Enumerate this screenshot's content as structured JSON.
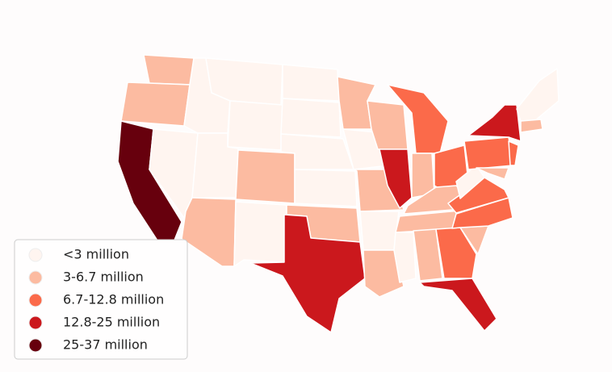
{
  "legend": {
    "items": [
      {
        "label": "<3 million",
        "color": "#fff5f0"
      },
      {
        "label": "3-6.7 million",
        "color": "#fcbba1"
      },
      {
        "label": "6.7-12.8 million",
        "color": "#fb6a4a"
      },
      {
        "label": "12.8-25 million",
        "color": "#cb181d"
      },
      {
        "label": "25-37 million",
        "color": "#67000d"
      }
    ]
  }
}
